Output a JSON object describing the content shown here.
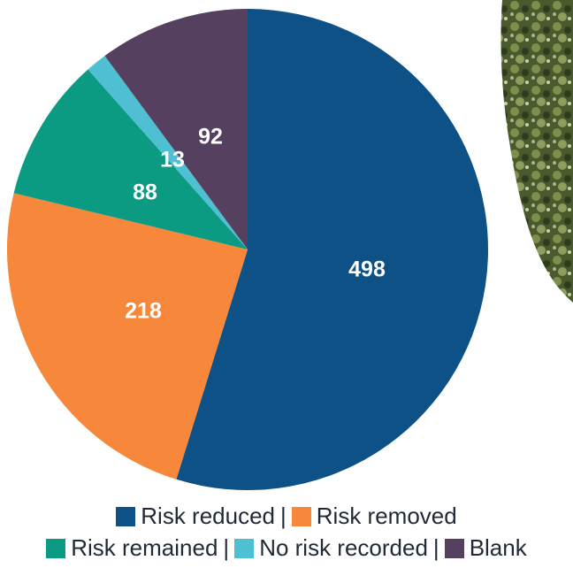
{
  "chart_data": {
    "type": "pie",
    "slices": [
      {
        "label": "Risk reduced",
        "value": 498,
        "color": "#0d5186"
      },
      {
        "label": "Risk removed",
        "value": 218,
        "color": "#f6873b"
      },
      {
        "label": "Risk remained",
        "value": 88,
        "color": "#0a9b82"
      },
      {
        "label": "No risk recorded",
        "value": 13,
        "color": "#4fbfd3"
      },
      {
        "label": "Blank",
        "value": 92,
        "color": "#55405f"
      }
    ],
    "legend_rows": [
      [
        "Risk reduced",
        "Risk removed"
      ],
      [
        "Risk remained",
        "No risk recorded",
        "Blank"
      ]
    ],
    "legend_position": "bottom",
    "separator": "|"
  },
  "decoration": {
    "photo_colors": [
      "#4a5a2c",
      "#7d8f4a",
      "#2f3a1e",
      "#a7b58a"
    ]
  }
}
